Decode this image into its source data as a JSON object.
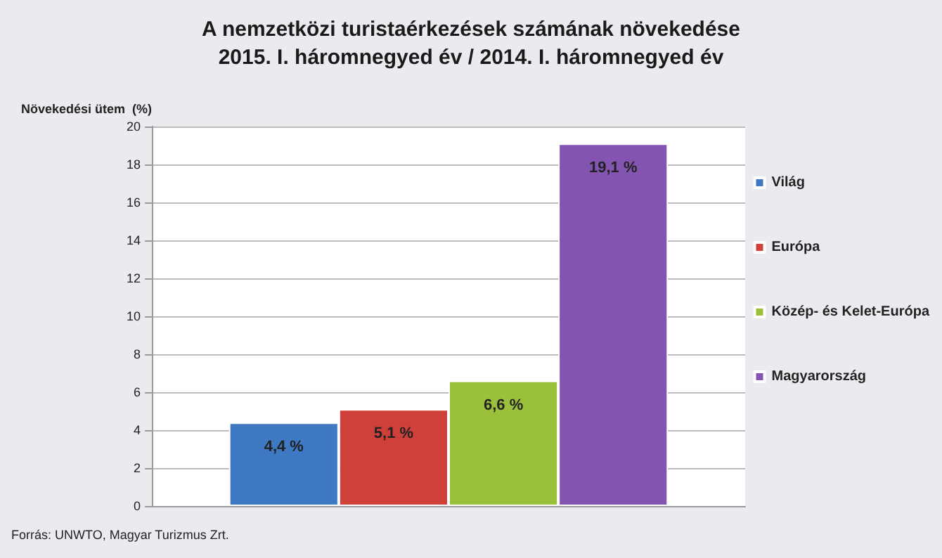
{
  "chart_data": {
    "type": "bar",
    "title": "A nemzetközi turistaérkezések számának növekedése\n2015. I. háromnegyed év / 2014. I. háromnegyed év",
    "ylabel": "Növekedési ütem  (%)",
    "categories": [
      null
    ],
    "series": [
      {
        "name": "Világ",
        "color": "#3f78c3",
        "values": [
          4.4
        ],
        "value_labels": [
          "4,4 %"
        ]
      },
      {
        "name": "Európa",
        "color": "#d0403a",
        "values": [
          5.1
        ],
        "value_labels": [
          "5,1 %"
        ]
      },
      {
        "name": "Közép- és Kelet-Európa",
        "color": "#9bc13c",
        "values": [
          6.6
        ],
        "value_labels": [
          "6,6 %"
        ]
      },
      {
        "name": "Magyarország",
        "color": "#8455b0",
        "values": [
          19.1
        ],
        "value_labels": [
          "19,1 %"
        ]
      }
    ],
    "ylim": [
      0,
      20
    ],
    "yticks": [
      0,
      2,
      4,
      6,
      8,
      10,
      12,
      14,
      16,
      18,
      20
    ],
    "grid": "y",
    "legend": "right",
    "annotations": [
      "Forrás: UNWTO, Magyar Turizmus Zrt."
    ]
  }
}
